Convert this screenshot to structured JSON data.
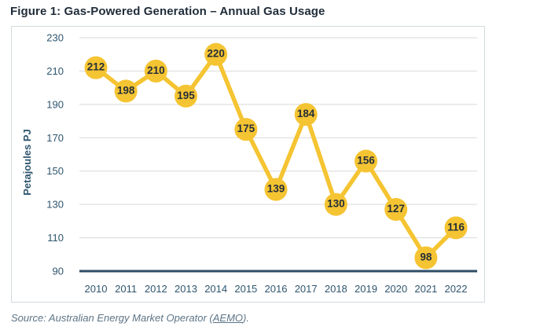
{
  "figure": {
    "title": "Figure 1: Gas-Powered Generation – Annual Gas Usage",
    "source_prefix": "Source: Australian Energy Market Operator (",
    "source_link": "AEMO",
    "source_suffix": ")."
  },
  "chart_data": {
    "type": "line",
    "title": "Figure 1: Gas-Powered Generation – Annual Gas Usage",
    "categories": [
      "2010",
      "2011",
      "2012",
      "2013",
      "2014",
      "2015",
      "2016",
      "2017",
      "2018",
      "2019",
      "2020",
      "2021",
      "2022"
    ],
    "values": [
      212,
      198,
      210,
      195,
      220,
      175,
      139,
      184,
      130,
      156,
      127,
      98,
      116
    ],
    "xlabel": "",
    "ylabel": "Petajoules PJ",
    "ylim": [
      90,
      230
    ],
    "ytick_step": 20,
    "yticks": [
      90,
      110,
      130,
      150,
      170,
      190,
      210,
      230
    ],
    "grid": true,
    "legend_position": "none",
    "data_labels": true,
    "colors": {
      "series_line": "#f5c432",
      "marker_fill": "#f5c432",
      "data_label_text": "#262f38",
      "gridline": "#d9d9d9",
      "x_axis_line": "#2e4d66",
      "tick_label": "#2e556e",
      "axis_title": "#2e556e",
      "figure_title": "#1f2c39",
      "source_text": "#5d7486",
      "panel_border": "#d3dade"
    }
  }
}
